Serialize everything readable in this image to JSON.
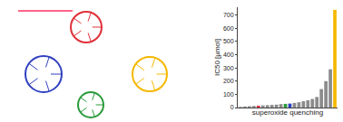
{
  "chart_data": {
    "type": "bar",
    "x_label": "superoxide quenching",
    "y_label": "IC50 [µmol]",
    "categories": [
      null,
      null,
      null,
      null,
      null,
      null,
      null,
      null,
      null,
      null,
      null,
      null,
      null,
      null,
      null,
      null,
      null,
      null,
      null,
      null,
      null,
      null
    ],
    "values": [
      5,
      8,
      10,
      12,
      14,
      16,
      18,
      20,
      22,
      26,
      28,
      30,
      35,
      40,
      48,
      55,
      65,
      80,
      140,
      200,
      290,
      740
    ],
    "colors": [
      "#8c8c8c",
      "#8c8c8c",
      "#8c8c8c",
      "#8c8c8c",
      "#e0303a",
      "#8c8c8c",
      "#8c8c8c",
      "#8c8c8c",
      "#8c8c8c",
      "#8c8c8c",
      "#2a9a3a",
      "#3040c0",
      "#8c8c8c",
      "#8c8c8c",
      "#8c8c8c",
      "#8c8c8c",
      "#8c8c8c",
      "#8c8c8c",
      "#8c8c8c",
      "#8c8c8c",
      "#8c8c8c",
      "#f5b800"
    ],
    "ylim": [
      0,
      760
    ],
    "yticks": [
      0,
      100,
      200,
      300,
      400,
      500,
      600,
      700
    ],
    "tick_labels": "y",
    "grid": false
  }
}
